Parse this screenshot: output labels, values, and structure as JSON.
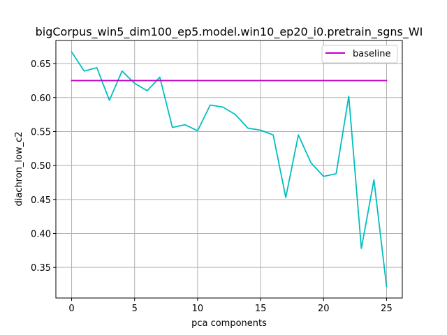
{
  "chart_data": {
    "type": "line",
    "title": "bigCorpus_win5_dim100_ep5.model.win10_ep20_i0.pretrain_sgns_WI",
    "xlabel": "pca components",
    "ylabel": "diachron_low_c2",
    "xlim": [
      -1.25,
      26.25
    ],
    "ylim": [
      0.305,
      0.684
    ],
    "xticks": [
      0,
      5,
      10,
      15,
      20,
      25
    ],
    "yticks": [
      0.35,
      0.4,
      0.45,
      0.5,
      0.55,
      0.6,
      0.65
    ],
    "ytick_labels": [
      "0.35",
      "0.40",
      "0.45",
      "0.50",
      "0.55",
      "0.60",
      "0.65"
    ],
    "grid": true,
    "legend_position": "top-right",
    "x": [
      0,
      1,
      2,
      3,
      4,
      5,
      6,
      7,
      8,
      9,
      10,
      11,
      12,
      13,
      14,
      15,
      16,
      17,
      18,
      19,
      20,
      21,
      22,
      23,
      24,
      25
    ],
    "series": [
      {
        "color": "#00bfbf",
        "values": [
          0.667,
          0.639,
          0.644,
          0.596,
          0.639,
          0.621,
          0.61,
          0.63,
          0.556,
          0.56,
          0.551,
          0.589,
          0.586,
          0.575,
          0.555,
          0.552,
          0.545,
          0.453,
          0.545,
          0.504,
          0.484,
          0.488,
          0.602,
          0.378,
          0.479,
          0.322
        ]
      },
      {
        "name": "baseline",
        "color": "#bf00bf",
        "values": [
          0.625,
          0.625,
          0.625,
          0.625,
          0.625,
          0.625,
          0.625,
          0.625,
          0.625,
          0.625,
          0.625,
          0.625,
          0.625,
          0.625,
          0.625,
          0.625,
          0.625,
          0.625,
          0.625,
          0.625,
          0.625,
          0.625,
          0.625,
          0.625,
          0.625,
          0.625
        ]
      }
    ]
  }
}
